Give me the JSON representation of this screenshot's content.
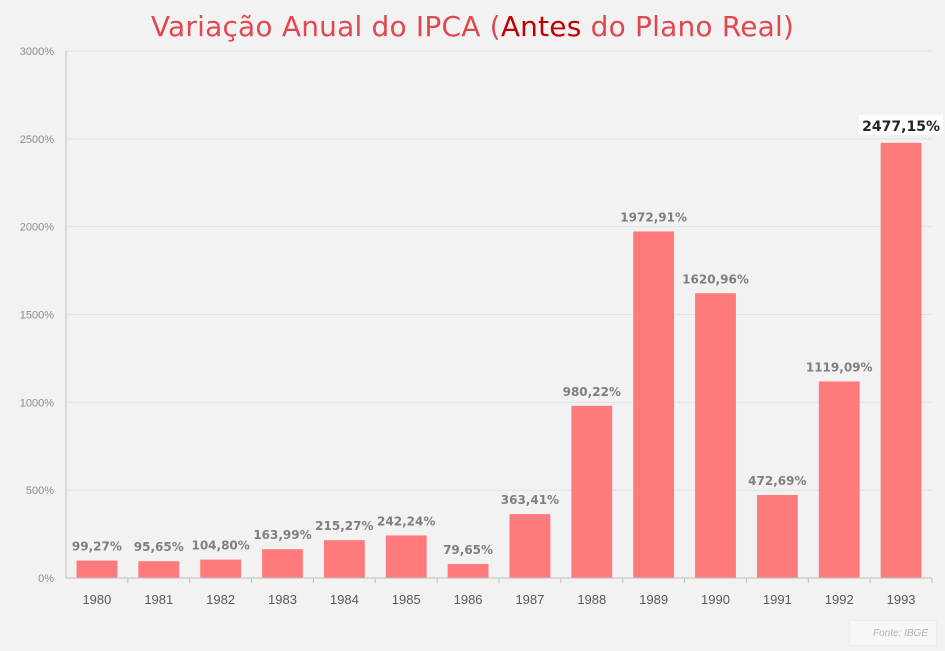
{
  "title": {
    "prefix": "Variação Anual do IPCA (",
    "highlight": "Antes",
    "suffix": " do Plano Real)"
  },
  "source": "Fonte: IBGE",
  "colors": {
    "bar": "#ff7b7b",
    "title": "#e0484f",
    "title_highlight": "#c00000",
    "grid": "#e3e3e3",
    "axis": "#bfbfbf"
  },
  "chart_data": {
    "type": "bar",
    "categories": [
      "1980",
      "1981",
      "1982",
      "1983",
      "1984",
      "1985",
      "1986",
      "1987",
      "1988",
      "1989",
      "1990",
      "1991",
      "1992",
      "1993"
    ],
    "values": [
      99.27,
      95.65,
      104.8,
      163.99,
      215.27,
      242.24,
      79.65,
      363.41,
      980.22,
      1972.91,
      1620.96,
      472.69,
      1119.09,
      2477.15
    ],
    "data_labels": [
      "99,27%",
      "95,65%",
      "104,80%",
      "163,99%",
      "215,27%",
      "242,24%",
      "79,65%",
      "363,41%",
      "980,22%",
      "1972,91%",
      "1620,96%",
      "472,69%",
      "1119,09%",
      "2477,15%"
    ],
    "ylim": [
      0,
      3000
    ],
    "yticks": [
      0,
      500,
      1000,
      1500,
      2000,
      2500,
      3000
    ],
    "ytick_labels": [
      "0%",
      "500%",
      "1000%",
      "1500%",
      "2000%",
      "2500%",
      "3000%"
    ],
    "grid": true,
    "legend": "none",
    "highlight_index": 13
  }
}
